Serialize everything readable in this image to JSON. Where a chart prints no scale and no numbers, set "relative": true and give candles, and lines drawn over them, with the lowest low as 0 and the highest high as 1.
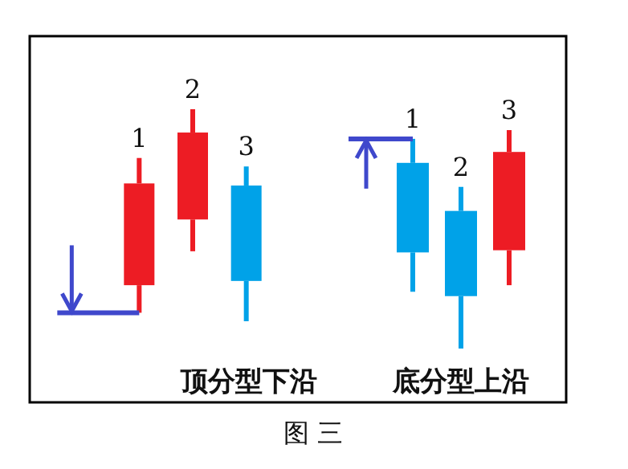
{
  "chart_data": [
    {
      "type": "candlestick",
      "relative": true,
      "categories": [
        "1",
        "2",
        "3"
      ],
      "ohlc": [
        [
          0.17,
          0.77,
          0.04,
          0.65
        ],
        [
          0.48,
          1,
          0.33,
          0.89
        ],
        [
          0.64,
          0.73,
          0,
          0.19
        ]
      ],
      "colors": [
        "#ed1c24",
        "#ed1c24",
        "#00a2e8"
      ],
      "ref_lines": [
        {
          "axis": "y",
          "value": 0.04,
          "color": "#3f48cc"
        }
      ],
      "xlabel": "顶分型下沿",
      "annotations": [
        "图 三"
      ]
    },
    {
      "type": "candlestick",
      "relative": true,
      "categories": [
        "1",
        "2",
        "3"
      ],
      "ohlc": [
        [
          0.85,
          0.96,
          0.26,
          0.44
        ],
        [
          0.63,
          0.74,
          0,
          0.24
        ],
        [
          0.45,
          1,
          0.29,
          0.9
        ]
      ],
      "colors": [
        "#00a2e8",
        "#00a2e8",
        "#ed1c24"
      ],
      "ref_lines": [
        {
          "axis": "y",
          "value": 0.96,
          "color": "#3f48cc"
        }
      ],
      "xlabel": "底分型上沿"
    }
  ]
}
